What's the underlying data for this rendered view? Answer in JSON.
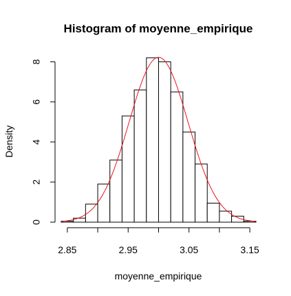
{
  "chart_data": {
    "type": "bar",
    "title": "Histogram of moyenne_empirique",
    "xlabel": "moyenne_empirique",
    "ylabel": "Density",
    "xlim": [
      2.84,
      3.16
    ],
    "ylim": [
      0,
      8.4
    ],
    "x_ticks": [
      "2.85",
      "2.95",
      "3.05",
      "3.15"
    ],
    "x_tick_values": [
      2.85,
      2.95,
      3.05,
      3.15
    ],
    "x_minor_ticks": [
      2.85,
      2.9,
      2.95,
      3.0,
      3.05,
      3.1,
      3.15
    ],
    "y_ticks": [
      "0",
      "2",
      "4",
      "6",
      "8"
    ],
    "y_tick_values": [
      0,
      2,
      4,
      6,
      8
    ],
    "bins": [
      {
        "x0": 2.84,
        "x1": 2.86,
        "density": 0.05
      },
      {
        "x0": 2.86,
        "x1": 2.88,
        "density": 0.2
      },
      {
        "x0": 2.88,
        "x1": 2.9,
        "density": 0.9
      },
      {
        "x0": 2.9,
        "x1": 2.92,
        "density": 1.9
      },
      {
        "x0": 2.92,
        "x1": 2.94,
        "density": 3.1
      },
      {
        "x0": 2.94,
        "x1": 2.96,
        "density": 5.3
      },
      {
        "x0": 2.96,
        "x1": 2.98,
        "density": 6.6
      },
      {
        "x0": 2.98,
        "x1": 3.0,
        "density": 8.2
      },
      {
        "x0": 3.0,
        "x1": 3.02,
        "density": 8.0
      },
      {
        "x0": 3.02,
        "x1": 3.04,
        "density": 6.5
      },
      {
        "x0": 3.04,
        "x1": 3.06,
        "density": 4.5
      },
      {
        "x0": 3.06,
        "x1": 3.08,
        "density": 2.9
      },
      {
        "x0": 3.08,
        "x1": 3.1,
        "density": 0.95
      },
      {
        "x0": 3.1,
        "x1": 3.12,
        "density": 0.55
      },
      {
        "x0": 3.12,
        "x1": 3.14,
        "density": 0.3
      },
      {
        "x0": 3.14,
        "x1": 3.16,
        "density": 0.05
      }
    ],
    "density_curve": {
      "mean": 3.0,
      "sd": 0.0485,
      "color": "#e8141f"
    },
    "bar_fill": "#ffffff",
    "bar_stroke": "#000000",
    "grid": false,
    "legend": "none"
  }
}
